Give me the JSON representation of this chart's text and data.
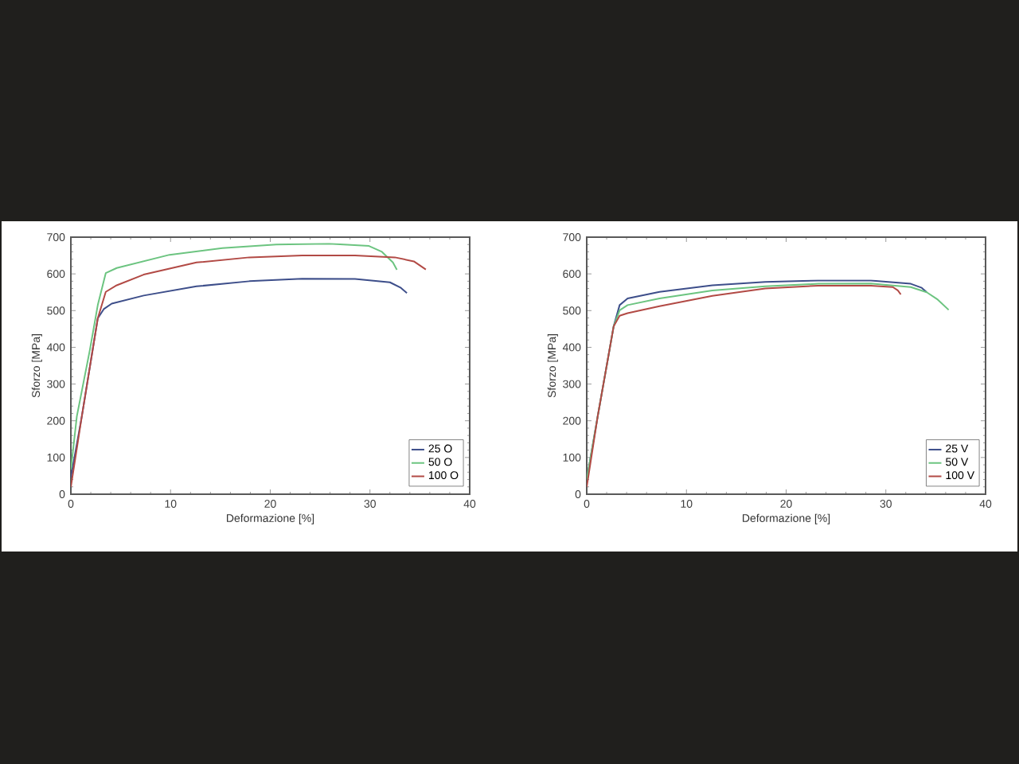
{
  "chart_data": [
    {
      "type": "line",
      "xlabel": "Deformazione [%]",
      "ylabel": "Sforzo [MPa]",
      "xlim": [
        0,
        40
      ],
      "ylim": [
        0,
        700
      ],
      "xticks": [
        0,
        10,
        20,
        30,
        40
      ],
      "yticks": [
        0,
        100,
        200,
        300,
        400,
        500,
        600,
        700
      ],
      "legend": "bottom right",
      "series": [
        {
          "name": "25 O",
          "color": "#3d4e8a",
          "x": [
            0,
            1.1,
            2.7,
            3.3,
            4.1,
            7.3,
            12.6,
            17.9,
            23.2,
            28.5,
            32,
            33.1,
            33.7
          ],
          "values": [
            46,
            212,
            479,
            504,
            519,
            541,
            566,
            580,
            587,
            586,
            577,
            562,
            548
          ]
        },
        {
          "name": "50 O",
          "color": "#6cc480",
          "x": [
            0,
            0.6,
            1.9,
            2.7,
            3.5,
            4.6,
            9.9,
            15.2,
            20.6,
            25.9,
            29.9,
            31.2,
            32.3,
            32.7
          ],
          "values": [
            67,
            212,
            392,
            515,
            602,
            616,
            652,
            670,
            680,
            682,
            676,
            660,
            631,
            611
          ]
        },
        {
          "name": "100 O",
          "color": "#b24a45",
          "x": [
            0,
            1.1,
            2.7,
            3.5,
            4.6,
            7.3,
            12.6,
            17.9,
            23.2,
            28.5,
            32.5,
            34.4,
            35.6
          ],
          "values": [
            20,
            212,
            479,
            551,
            569,
            598,
            631,
            645,
            650,
            650,
            645,
            634,
            612
          ]
        }
      ]
    },
    {
      "type": "line",
      "xlabel": "Deformazione [%]",
      "ylabel": "Sforzo [MPa]",
      "xlim": [
        0,
        40
      ],
      "ylim": [
        0,
        700
      ],
      "xticks": [
        0,
        10,
        20,
        30,
        40
      ],
      "yticks": [
        0,
        100,
        200,
        300,
        400,
        500,
        600,
        700
      ],
      "legend": "bottom right",
      "series": [
        {
          "name": "25 V",
          "color": "#3d4e8a",
          "x": [
            0,
            1.1,
            2.7,
            3.3,
            4.1,
            7.3,
            12.6,
            17.9,
            23.2,
            28.5,
            32.5,
            33.6,
            34.1
          ],
          "values": [
            40,
            212,
            457,
            515,
            533,
            551,
            569,
            578,
            582,
            582,
            573,
            562,
            550
          ]
        },
        {
          "name": "50 V",
          "color": "#6cc480",
          "x": [
            0,
            1.1,
            2.7,
            3.3,
            4.1,
            7.3,
            12.6,
            17.9,
            23.2,
            28.5,
            32.5,
            34.1,
            35.2,
            36.3
          ],
          "values": [
            40,
            212,
            457,
            501,
            515,
            533,
            555,
            566,
            573,
            574,
            564,
            550,
            530,
            502
          ]
        },
        {
          "name": "100 V",
          "color": "#b24a45",
          "x": [
            0,
            1.1,
            2.7,
            3.3,
            4.1,
            7.3,
            12.6,
            17.9,
            23.2,
            28.5,
            30.7,
            31.2,
            31.5
          ],
          "values": [
            20,
            212,
            457,
            486,
            493,
            512,
            540,
            560,
            568,
            568,
            564,
            555,
            544
          ]
        }
      ]
    }
  ]
}
